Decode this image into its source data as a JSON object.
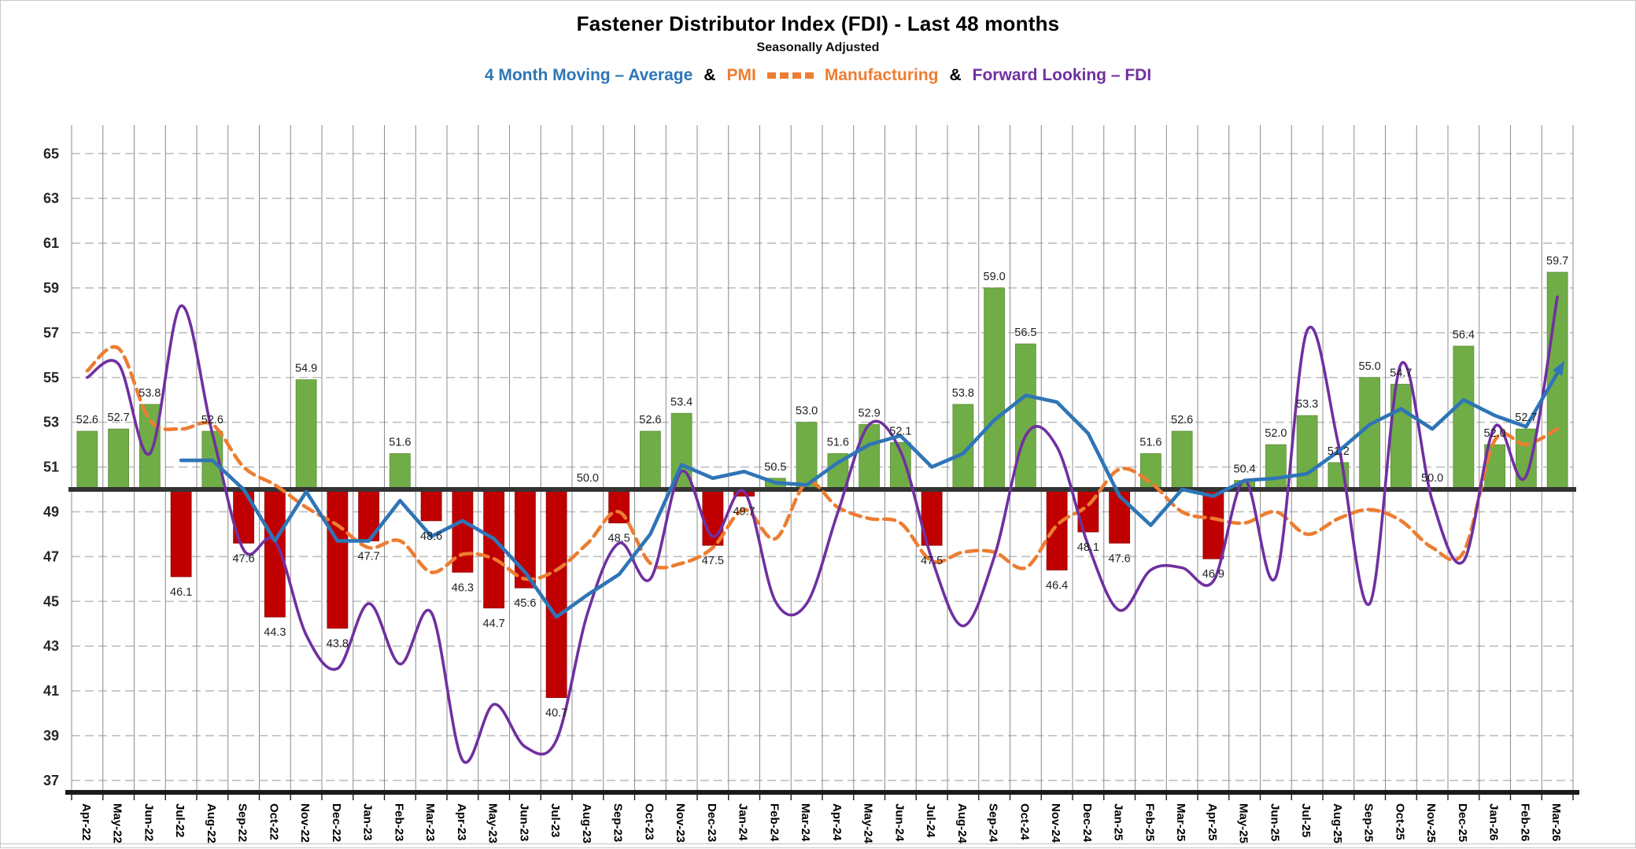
{
  "header": {
    "title": "Fastener Distributor Index (FDI) - Last 48 months",
    "subtitle": "Seasonally Adjusted",
    "legend": [
      {
        "label": "4 Month Moving – Average",
        "color": "#2E75B6",
        "marker": "none"
      },
      {
        "label": "&",
        "color": "#000000",
        "marker": "none"
      },
      {
        "label": "PMI",
        "color": "#ED7D31",
        "marker": "none"
      },
      {
        "label": "",
        "color": "#ED7D31",
        "marker": "dash-squares"
      },
      {
        "label": "Manufacturing",
        "color": "#ED7D31",
        "marker": "none"
      },
      {
        "label": "&",
        "color": "#000000",
        "marker": "none"
      },
      {
        "label": "Forward Looking – FDI",
        "color": "#7030A0",
        "marker": "none"
      }
    ]
  },
  "chart_data": {
    "type": "bar",
    "combo": "bars with three overlay lines",
    "title": "Fastener Distributor Index (FDI) - Last 48 months",
    "subtitle": "Seasonally Adjusted",
    "baseline": 50,
    "grid": "horizontal dashed at odd values, vertical solid at month boundaries",
    "y_axis": {
      "min": 37,
      "max": 65,
      "tick_step": 2,
      "ticks": [
        65,
        63,
        61,
        59,
        57,
        55,
        53,
        51,
        49,
        47,
        45,
        43,
        41,
        39,
        37
      ]
    },
    "categories": [
      "Apr-22",
      "May-22",
      "Jun-22",
      "Jul-22",
      "Aug-22",
      "Sep-22",
      "Oct-22",
      "Nov-22",
      "Dec-22",
      "Jan-23",
      "Feb-23",
      "Mar-23",
      "Apr-23",
      "May-23",
      "Jun-23",
      "Jul-23",
      "Aug-23",
      "Sep-23",
      "Oct-23",
      "Nov-23",
      "Dec-23",
      "Jan-24",
      "Feb-24",
      "Mar-24",
      "Apr-24",
      "May-24",
      "Jun-24",
      "Jul-24",
      "Aug-24",
      "Sep-24",
      "Oct-24",
      "Nov-24",
      "Dec-24",
      "Jan-25",
      "Feb-25",
      "Mar-25",
      "Apr-25",
      "May-25",
      "Jun-25",
      "Jul-25",
      "Aug-25",
      "Sep-25",
      "Oct-25",
      "Nov-25",
      "Dec-25",
      "Jan-26",
      "Feb-26",
      "Mar-26"
    ],
    "bar_series": {
      "name": "FDI",
      "positive_color": "#70AD47",
      "negative_color": "#C00000",
      "labels_shown": true,
      "values": [
        52.6,
        52.7,
        53.8,
        46.1,
        52.6,
        47.6,
        44.3,
        54.9,
        43.8,
        47.7,
        51.6,
        48.6,
        46.3,
        44.7,
        45.6,
        40.7,
        50.0,
        48.5,
        52.6,
        53.4,
        47.5,
        49.7,
        50.5,
        53.0,
        51.6,
        52.9,
        52.1,
        47.5,
        53.8,
        59.0,
        56.5,
        46.4,
        48.1,
        47.6,
        51.6,
        52.6,
        46.9,
        50.4,
        52.0,
        53.3,
        51.2,
        55.0,
        54.7,
        50.0,
        56.4,
        52.0,
        52.7,
        59.7
      ]
    },
    "line_series": [
      {
        "name": "4 Month Moving – Average",
        "color": "#2E75B6",
        "style": "solid",
        "arrow_end": true,
        "values": [
          null,
          null,
          null,
          51.3,
          51.3,
          50.0,
          47.7,
          49.9,
          47.7,
          47.7,
          49.5,
          47.9,
          48.6,
          47.8,
          46.3,
          44.3,
          45.3,
          46.2,
          48.0,
          51.1,
          50.5,
          50.8,
          50.3,
          50.2,
          51.2,
          52.0,
          52.4,
          51.0,
          51.6,
          53.1,
          54.2,
          53.9,
          52.5,
          49.7,
          48.4,
          50.0,
          49.7,
          50.4,
          50.5,
          50.7,
          51.7,
          52.9,
          53.6,
          52.7,
          54.0,
          53.3,
          52.8,
          55.2
        ]
      },
      {
        "name": "PMI Manufacturing",
        "color": "#ED7D31",
        "style": "dashed-smooth",
        "arrow_end": false,
        "values": [
          55.3,
          56.3,
          53.1,
          52.7,
          52.9,
          51.0,
          50.2,
          49.2,
          48.4,
          47.4,
          47.7,
          46.3,
          47.1,
          46.9,
          46.0,
          46.4,
          47.6,
          49.0,
          46.7,
          46.7,
          47.4,
          49.1,
          47.8,
          50.3,
          49.2,
          48.7,
          48.5,
          46.8,
          47.2,
          47.2,
          46.5,
          48.4,
          49.3,
          50.9,
          50.3,
          49.0,
          48.7,
          48.5,
          49.0,
          48.0,
          48.7,
          49.1,
          48.6,
          47.4,
          47.2,
          52.2,
          52.0,
          52.7
        ]
      },
      {
        "name": "Forward Looking – FDI",
        "color": "#7030A0",
        "style": "smooth",
        "arrow_end": false,
        "values": [
          55.0,
          55.6,
          51.6,
          58.2,
          52.5,
          47.3,
          47.7,
          43.5,
          42.0,
          44.9,
          42.2,
          44.5,
          37.9,
          40.4,
          38.5,
          38.8,
          44.5,
          47.6,
          46.0,
          50.8,
          47.9,
          49.9,
          45.0,
          44.9,
          49.0,
          52.9,
          51.7,
          46.9,
          43.9,
          47.0,
          52.4,
          51.9,
          47.5,
          44.6,
          46.4,
          46.5,
          45.9,
          50.4,
          46.1,
          57.1,
          52.0,
          44.9,
          55.6,
          49.5,
          46.8,
          52.8,
          50.6,
          58.6
        ]
      }
    ]
  },
  "style": {
    "h_grid_color": "#bfbfbf",
    "v_grid_color": "#8c8c8c",
    "baseline_color": "#333333",
    "axis_color": "#1a1a1a",
    "tick_label_color": "#262626",
    "data_label_color": "#1f1f1f"
  }
}
